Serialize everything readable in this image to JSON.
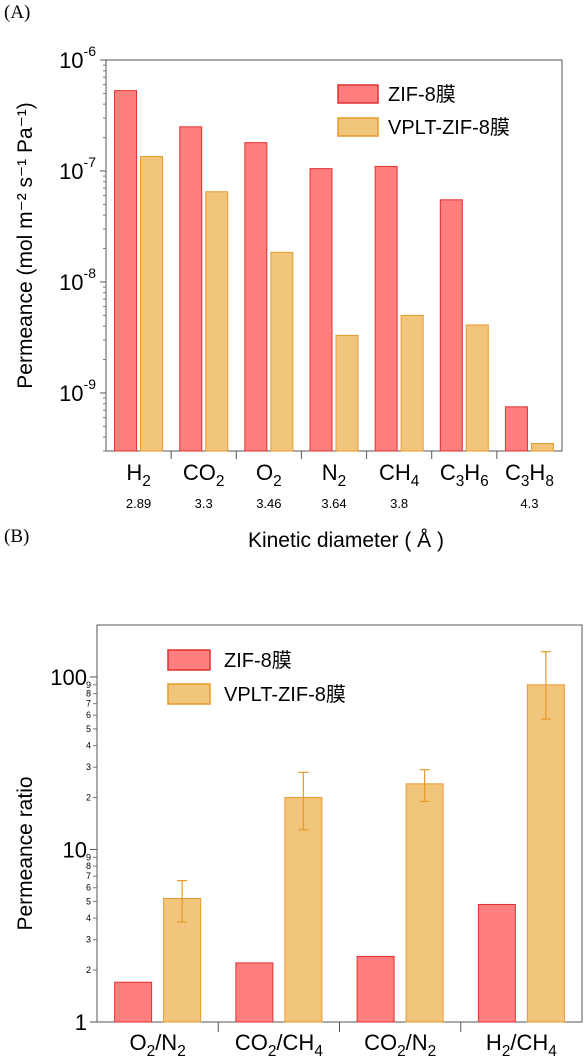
{
  "panels": {
    "a": "(A)",
    "b": "(B)"
  },
  "colors": {
    "zif": "#ff7f7f",
    "zif_edge": "#e03030",
    "vplt": "#f2c57c",
    "vplt_edge": "#e59a2a",
    "axis": "#000000"
  },
  "chart_data": [
    {
      "type": "bar",
      "title": "",
      "xlabel": "Kinetic diameter ( Å )",
      "ylabel": "Permeance (mol m⁻² s⁻¹ Pa⁻¹)",
      "yscale": "log",
      "ylim": [
        3e-10,
        1e-06
      ],
      "yticks": [
        {
          "value": 1e-06,
          "base": "10",
          "exp": "-6"
        },
        {
          "value": 1e-07,
          "base": "10",
          "exp": "-7"
        },
        {
          "value": 1e-08,
          "base": "10",
          "exp": "-8"
        },
        {
          "value": 1e-09,
          "base": "10",
          "exp": "-9"
        }
      ],
      "categories": [
        {
          "parts": [
            [
              "H",
              ""
            ],
            [
              "2",
              "sub"
            ]
          ],
          "sublabel": "2.89"
        },
        {
          "parts": [
            [
              "CO",
              ""
            ],
            [
              "2",
              "sub"
            ]
          ],
          "sublabel": "3.3"
        },
        {
          "parts": [
            [
              "O",
              ""
            ],
            [
              "2",
              "sub"
            ]
          ],
          "sublabel": "3.46"
        },
        {
          "parts": [
            [
              "N",
              ""
            ],
            [
              "2",
              "sub"
            ]
          ],
          "sublabel": "3.64"
        },
        {
          "parts": [
            [
              "CH",
              ""
            ],
            [
              "4",
              "sub"
            ]
          ],
          "sublabel": "3.8"
        },
        {
          "parts": [
            [
              "C",
              ""
            ],
            [
              "3",
              "sub"
            ],
            [
              "H",
              ""
            ],
            [
              "6",
              "sub"
            ]
          ],
          "sublabel": ""
        },
        {
          "parts": [
            [
              "C",
              ""
            ],
            [
              "3",
              "sub"
            ],
            [
              "H",
              ""
            ],
            [
              "8",
              "sub"
            ]
          ],
          "sublabel": "4.3"
        }
      ],
      "series": [
        {
          "name": "ZIF-8膜",
          "values": [
            5.3e-07,
            2.5e-07,
            1.8e-07,
            1.05e-07,
            1.1e-07,
            5.5e-08,
            7.5e-10
          ]
        },
        {
          "name": "VPLT-ZIF-8膜",
          "values": [
            1.35e-07,
            6.5e-08,
            1.85e-08,
            3.3e-09,
            5e-09,
            4.1e-09,
            3.5e-10
          ]
        }
      ],
      "legend": "top-right",
      "grid": false
    },
    {
      "type": "bar",
      "title": "",
      "xlabel": "",
      "ylabel": "Permeance ratio",
      "yscale": "log",
      "ylim": [
        1,
        200
      ],
      "major_ticks": [
        {
          "value": 1,
          "label": "1"
        },
        {
          "value": 10,
          "label": "10"
        },
        {
          "value": 100,
          "label": "100"
        }
      ],
      "minor_ticks": [
        {
          "value": 2,
          "label": "2"
        },
        {
          "value": 3,
          "label": "3"
        },
        {
          "value": 4,
          "label": "4"
        },
        {
          "value": 5,
          "label": "5"
        },
        {
          "value": 6,
          "label": "6"
        },
        {
          "value": 7,
          "label": "7"
        },
        {
          "value": 8,
          "label": "8"
        },
        {
          "value": 9,
          "label": "9"
        },
        {
          "value": 20,
          "label": "2"
        },
        {
          "value": 30,
          "label": "3"
        },
        {
          "value": 40,
          "label": "4"
        },
        {
          "value": 50,
          "label": "5"
        },
        {
          "value": 60,
          "label": "6"
        },
        {
          "value": 70,
          "label": "7"
        },
        {
          "value": 80,
          "label": "8"
        },
        {
          "value": 90,
          "label": "9"
        }
      ],
      "categories": [
        {
          "parts": [
            [
              "O",
              ""
            ],
            [
              "2",
              "sub"
            ],
            [
              "/N",
              ""
            ],
            [
              "2",
              "sub"
            ]
          ]
        },
        {
          "parts": [
            [
              "CO",
              ""
            ],
            [
              "2",
              "sub"
            ],
            [
              "/CH",
              ""
            ],
            [
              "4",
              "sub"
            ]
          ]
        },
        {
          "parts": [
            [
              "CO",
              ""
            ],
            [
              "2",
              "sub"
            ],
            [
              "/N",
              ""
            ],
            [
              "2",
              "sub"
            ]
          ]
        },
        {
          "parts": [
            [
              "H",
              ""
            ],
            [
              "2",
              "sub"
            ],
            [
              "/CH",
              ""
            ],
            [
              "4",
              "sub"
            ]
          ]
        }
      ],
      "series": [
        {
          "name": "ZIF-8膜",
          "values": [
            1.7,
            2.2,
            2.4,
            4.8
          ]
        },
        {
          "name": "VPLT-ZIF-8膜",
          "values": [
            5.2,
            20,
            24,
            90
          ],
          "error_low": [
            3.8,
            13,
            19,
            57
          ],
          "error_high": [
            6.6,
            28,
            29,
            140
          ]
        }
      ],
      "legend": "top-left",
      "grid": false
    }
  ]
}
